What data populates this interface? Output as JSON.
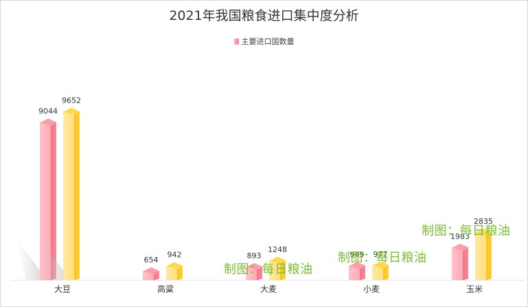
{
  "chart_data": {
    "type": "bar",
    "title": "2021年我国粮食进口集中度分析",
    "categories": [
      "大豆",
      "高粱",
      "大麦",
      "小麦",
      "玉米"
    ],
    "series": [
      {
        "name": "主要进口国数量",
        "values": [
          9044,
          654,
          893,
          949,
          1983
        ],
        "value_labels": [
          "9044",
          "654",
          "893",
          "949",
          "1983"
        ],
        "color": "#f47e8f"
      },
      {
        "values": [
          9652,
          942,
          1248,
          977,
          2835
        ],
        "value_labels": [
          "9652",
          "942",
          "1248",
          "977",
          "2835"
        ],
        "color": "#fdd33a"
      }
    ],
    "ylim": [
      0,
      10000
    ],
    "legend_position": "top-center",
    "grid": false
  },
  "watermark": "制图：每日粮油"
}
